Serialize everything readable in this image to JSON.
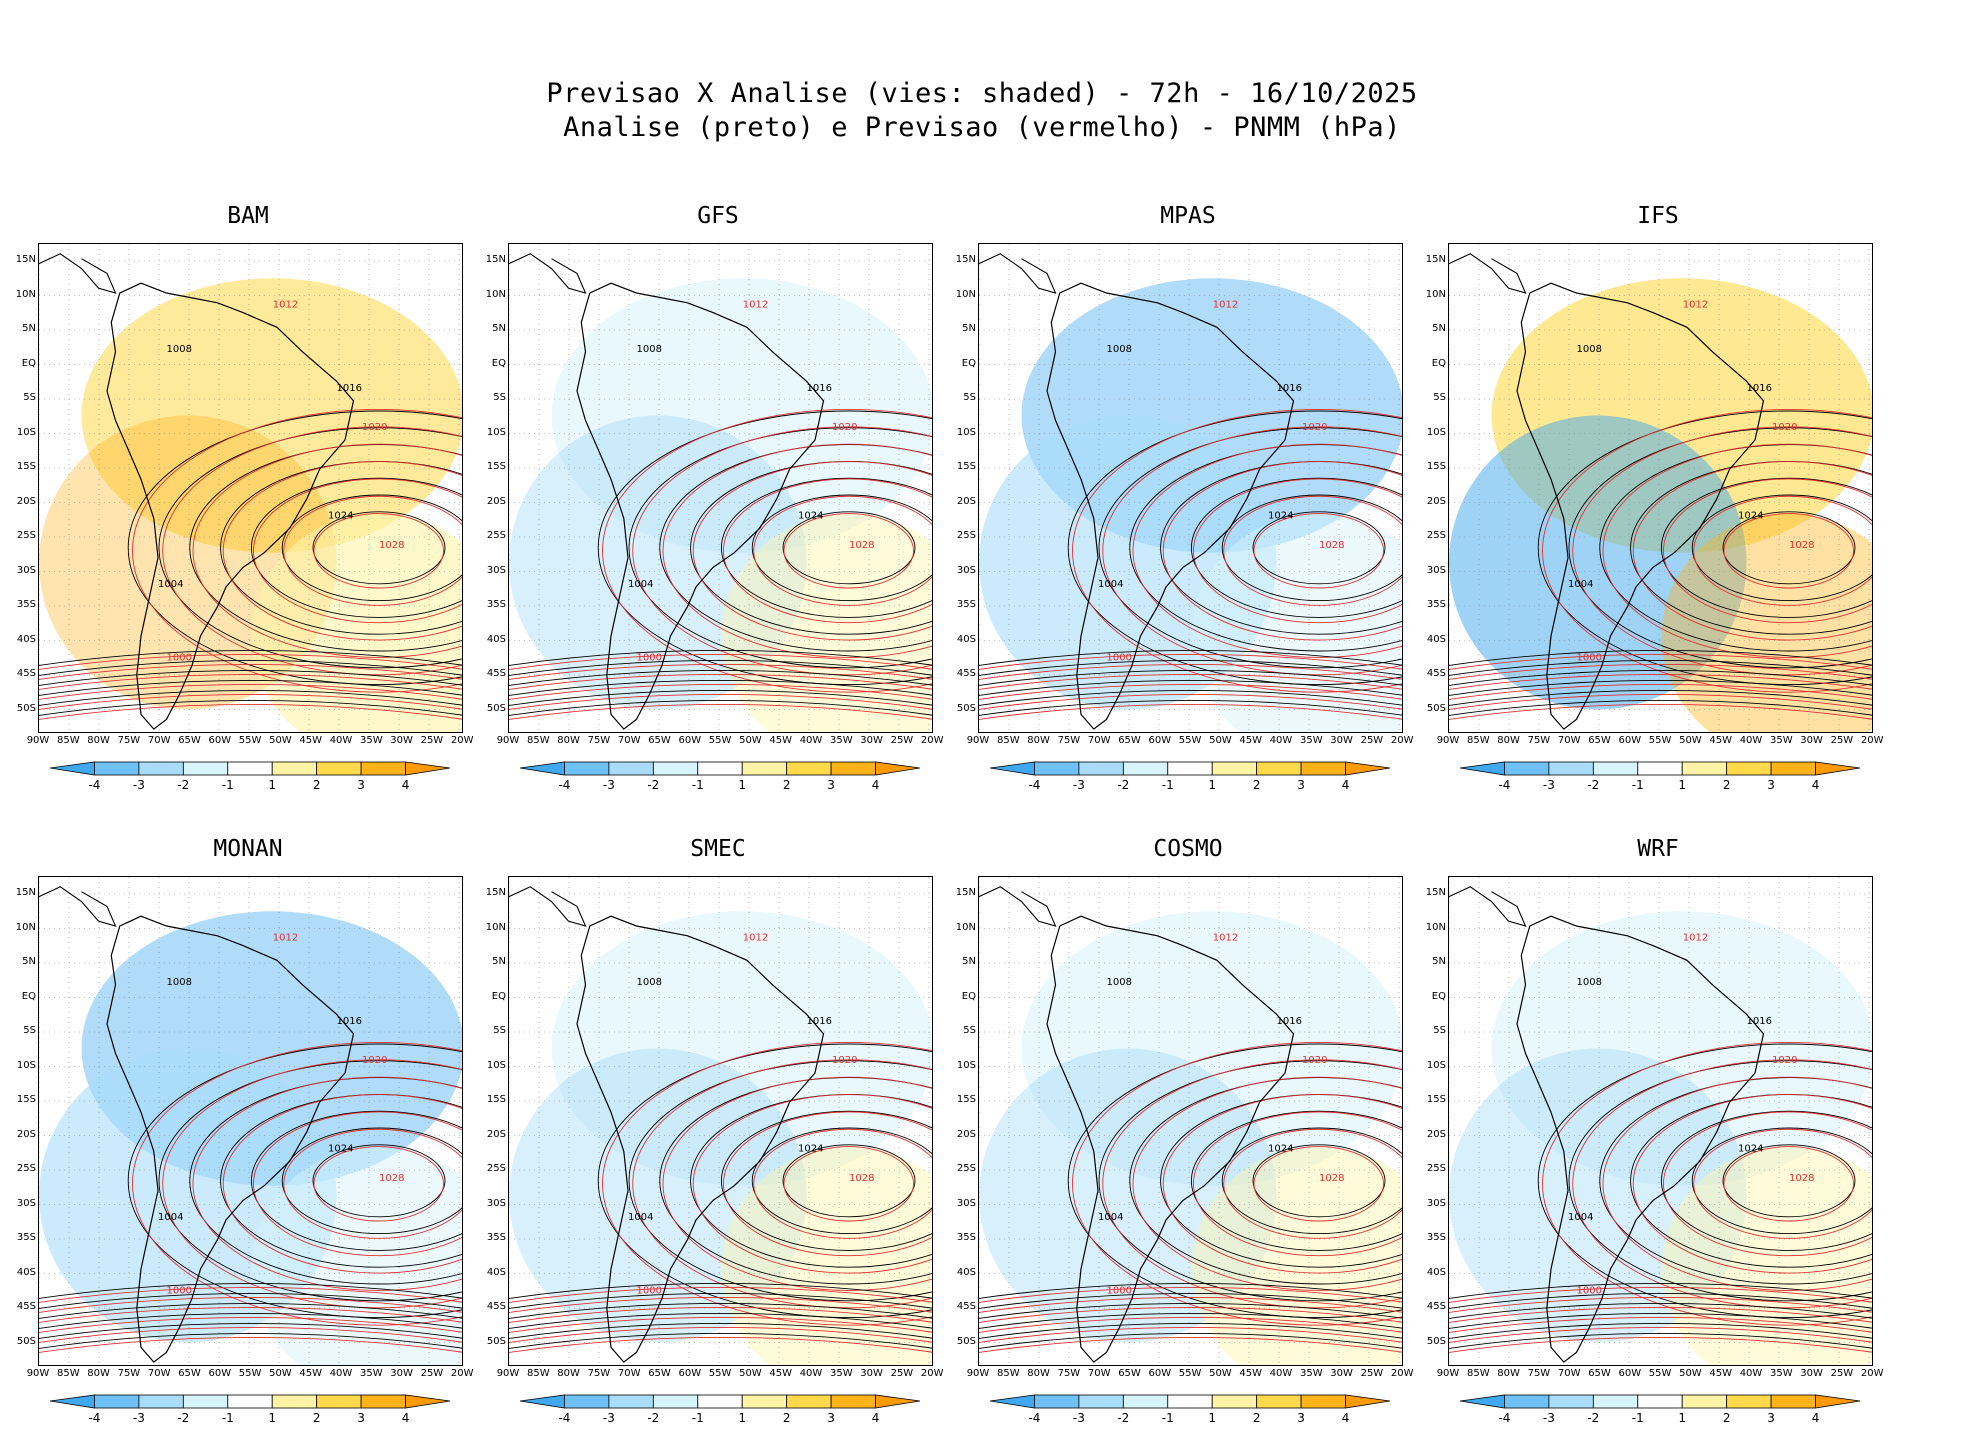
{
  "title": {
    "line1": "Previsao X Analise (vies: shaded) - 72h - 16/10/2025",
    "line2": "Analise (preto) e Previsao (vermelho) - PNMM (hPa)"
  },
  "lat_labels": [
    "15N",
    "10N",
    "5N",
    "EQ",
    "5S",
    "10S",
    "15S",
    "20S",
    "25S",
    "30S",
    "35S",
    "40S",
    "45S",
    "50S"
  ],
  "lon_labels": [
    "90W",
    "85W",
    "80W",
    "75W",
    "70W",
    "65W",
    "60W",
    "55W",
    "50W",
    "45W",
    "40W",
    "35W",
    "30W",
    "25W",
    "20W"
  ],
  "colorbar": {
    "ticks": [
      "-4",
      "-3",
      "-2",
      "-1",
      "1",
      "2",
      "3",
      "4"
    ],
    "colors": [
      "#3fa8ee",
      "#6fc0f5",
      "#a8dcf8",
      "#d8f4fb",
      "#ffffff",
      "#fff3a8",
      "#ffd94a",
      "#ffb319",
      "#ff9a00"
    ]
  },
  "colors": {
    "analysis_line": "#000000",
    "forecast_line": "#e03030",
    "land_line": "#000000"
  },
  "panels": [
    {
      "name": "BAM",
      "bias": "warm",
      "labels": [
        "1008",
        "1012",
        "1016",
        "1020",
        "1024",
        "1028",
        "1004",
        "1000"
      ]
    },
    {
      "name": "GFS",
      "bias": "mixed",
      "labels": [
        "1008",
        "1012",
        "1016",
        "1020",
        "1024",
        "1028",
        "1004",
        "1000"
      ]
    },
    {
      "name": "MPAS",
      "bias": "cold",
      "labels": [
        "1008",
        "1012",
        "1016",
        "1020",
        "1024",
        "1028",
        "1004",
        "1000"
      ]
    },
    {
      "name": "IFS",
      "bias": "warm-cold",
      "labels": [
        "1008",
        "1012",
        "1016",
        "1020",
        "1024",
        "1028",
        "1004",
        "1000"
      ]
    },
    {
      "name": "MONAN",
      "bias": "cold",
      "labels": [
        "1008",
        "1012",
        "1016",
        "1020",
        "1024",
        "1028",
        "1004",
        "1000"
      ]
    },
    {
      "name": "SMEC",
      "bias": "mixed",
      "labels": [
        "1008",
        "1012",
        "1016",
        "1020",
        "1024",
        "1028",
        "1004",
        "1000"
      ]
    },
    {
      "name": "COSMO",
      "bias": "mixed",
      "labels": [
        "1008",
        "1012",
        "1016",
        "1020",
        "1024",
        "1028",
        "1004",
        "1000"
      ]
    },
    {
      "name": "WRF",
      "bias": "mixed",
      "labels": [
        "1008",
        "1012",
        "1016",
        "1020",
        "1024",
        "1028",
        "1004",
        "1000"
      ]
    }
  ]
}
